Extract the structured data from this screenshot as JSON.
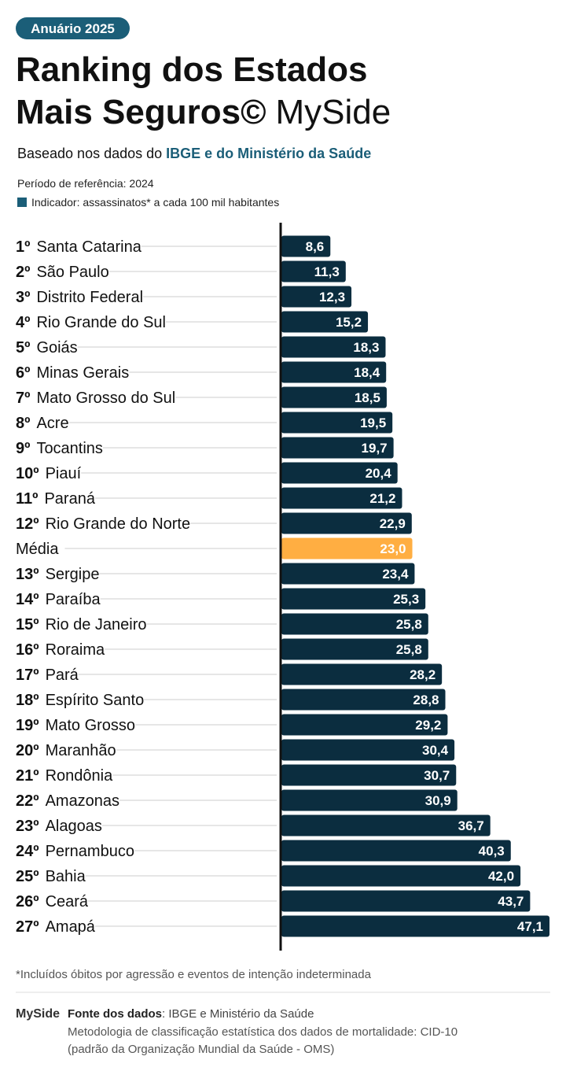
{
  "badge": "Anuário 2025",
  "title_lines": [
    "Ranking dos Estados",
    "Mais Seguros©"
  ],
  "brand": "MySide",
  "subtitle": {
    "text": "Baseado nos dados do",
    "highlight": "IBGE e do Ministério da Saúde"
  },
  "period": "Período de referência: 2024",
  "chart_data": {
    "type": "bar",
    "orientation": "horizontal",
    "legend": "Indicador: assassinatos* a cada 100 mil habitantes",
    "legend_color": "#1b5e78",
    "ranks": [
      "1º",
      "2º",
      "3º",
      "4º",
      "5º",
      "6º",
      "7º",
      "8º",
      "9º",
      "10º",
      "11º",
      "12º",
      null,
      "13º",
      "14º",
      "15º",
      "16º",
      "17º",
      "18º",
      "19º",
      "20º",
      "21º",
      "22º",
      "23º",
      "24º",
      "25º",
      "26º",
      "27º"
    ],
    "categories": [
      "Santa Catarina",
      "São Paulo",
      "Distrito Federal",
      "Rio Grande do Sul",
      "Goiás",
      "Minas Gerais",
      "Mato Grosso do Sul",
      "Acre",
      "Tocantins",
      "Piauí",
      "Paraná",
      "Rio Grande do Norte",
      "Média",
      "Sergipe",
      "Paraíba",
      "Rio de Janeiro",
      "Roraima",
      "Pará",
      "Espírito Santo",
      "Mato Grosso",
      "Maranhão",
      "Rondônia",
      "Amazonas",
      "Alagoas",
      "Pernambuco",
      "Bahia",
      "Ceará",
      "Amapá"
    ],
    "values": [
      8.6,
      11.3,
      12.3,
      15.2,
      18.3,
      18.4,
      18.5,
      19.5,
      19.7,
      20.4,
      21.2,
      22.9,
      23.0,
      23.4,
      25.3,
      25.8,
      25.8,
      28.2,
      28.8,
      29.2,
      30.4,
      30.7,
      30.9,
      36.7,
      40.3,
      42.0,
      43.7,
      47.1
    ],
    "value_labels": [
      "8,6",
      "11,3",
      "12,3",
      "15,2",
      "18,3",
      "18,4",
      "18,5",
      "19,5",
      "19,7",
      "20,4",
      "21,2",
      "22,9",
      "23,0",
      "23,4",
      "25,3",
      "25,8",
      "25,8",
      "28,2",
      "28,8",
      "29,2",
      "30,4",
      "30,7",
      "30,9",
      "36,7",
      "40,3",
      "42,0",
      "43,7",
      "47,1"
    ],
    "bar_colors": [
      "#0b2d3f",
      "#0b2d3f",
      "#0b2d3f",
      "#0b2d3f",
      "#0b2d3f",
      "#0b2d3f",
      "#0b2d3f",
      "#0b2d3f",
      "#0b2d3f",
      "#0b2d3f",
      "#0b2d3f",
      "#0b2d3f",
      "#ffae42",
      "#0b2d3f",
      "#0b2d3f",
      "#0b2d3f",
      "#0b2d3f",
      "#0b2d3f",
      "#0b2d3f",
      "#0b2d3f",
      "#0b2d3f",
      "#0b2d3f",
      "#0b2d3f",
      "#0b2d3f",
      "#0b2d3f",
      "#0b2d3f",
      "#0b2d3f",
      "#0b2d3f"
    ]
  },
  "footnote": "*Incluídos óbitos por agressão e eventos de intenção indeterminada",
  "footer": {
    "source_label": "Fonte dos dados",
    "source": ": IBGE e Ministério da Saúde",
    "method_lines": [
      "Metodologia de classificação estatística dos dados de mortalidade: CID-10",
      "(padrão da Organização Mundial da Saúde - OMS)"
    ]
  }
}
